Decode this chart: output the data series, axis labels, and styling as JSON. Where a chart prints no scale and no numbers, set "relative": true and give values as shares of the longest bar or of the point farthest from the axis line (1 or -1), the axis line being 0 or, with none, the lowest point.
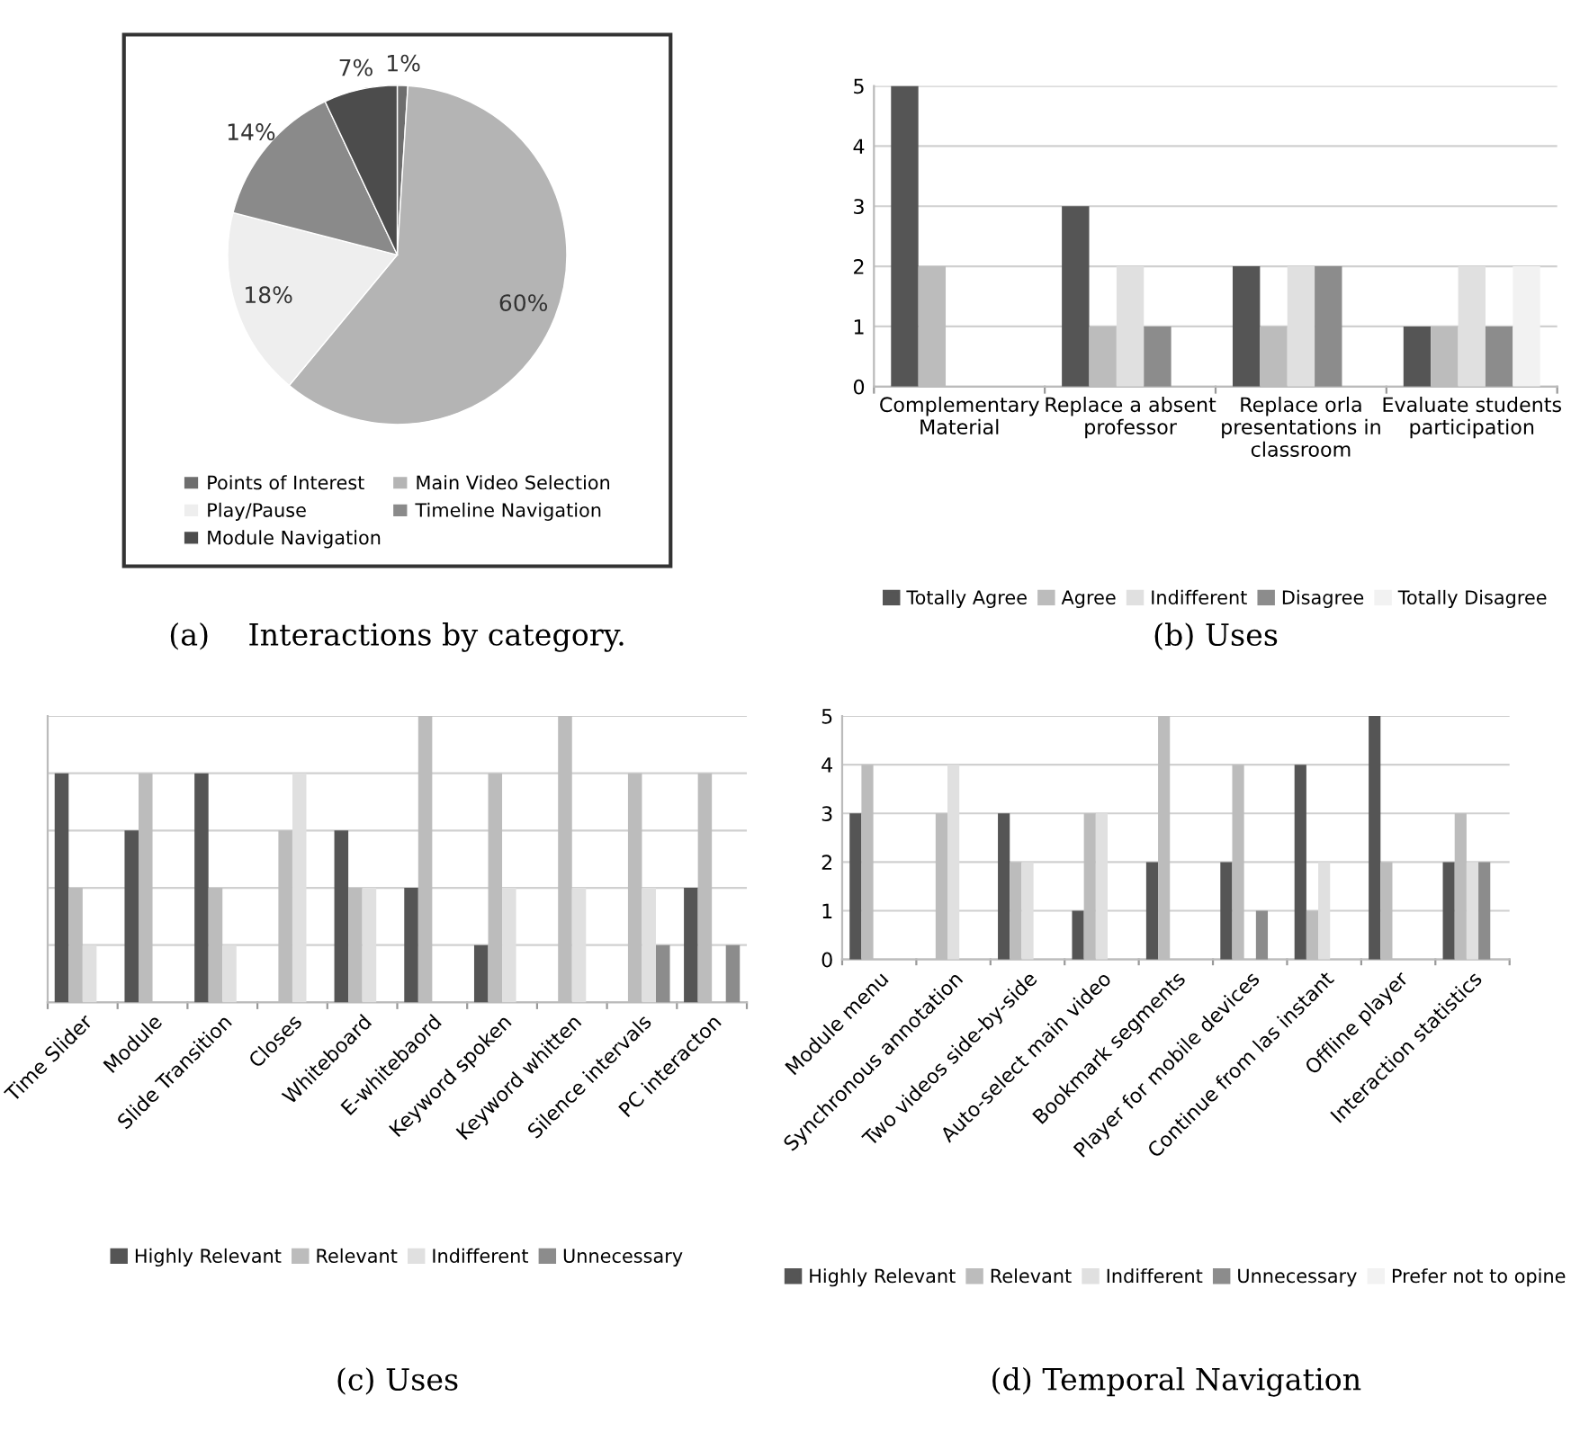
{
  "chart_data": [
    {
      "type": "pie",
      "title": "(a)    Interactions by category.",
      "categories": [
        "Points of Interest",
        "Main Video Selection",
        "Play/Pause",
        "Timeline Navigation",
        "Module Navigation"
      ],
      "values": [
        1,
        60,
        18,
        14,
        7
      ],
      "colors": [
        "#6e6e6e",
        "#b4b4b4",
        "#eeeeee",
        "#8a8a8a",
        "#4c4c4c"
      ],
      "value_labels": [
        "1%",
        "60%",
        "18%",
        "14%",
        "7%"
      ],
      "legend": "bottom"
    },
    {
      "type": "bar",
      "title": "(b) Uses",
      "categories": [
        "Complementary\nMaterial",
        "Replace a absent\nprofessor",
        "Replace orla\npresentations in\nclassroom",
        "Evaluate students\nparticipation"
      ],
      "ylim": [
        0,
        5
      ],
      "yticks": [
        0,
        1,
        2,
        3,
        4,
        5
      ],
      "grid": "y",
      "legend": "bottom",
      "series": [
        {
          "name": "Totally Agree",
          "color": "#555555",
          "values": [
            5,
            3,
            2,
            1
          ]
        },
        {
          "name": "Agree",
          "color": "#bcbcbc",
          "values": [
            2,
            1,
            1,
            1
          ]
        },
        {
          "name": "Indifferent",
          "color": "#e0e0e0",
          "values": [
            null,
            2,
            2,
            2
          ]
        },
        {
          "name": "Disagree",
          "color": "#8c8c8c",
          "values": [
            null,
            1,
            2,
            1
          ]
        },
        {
          "name": "Totally Disagree",
          "color": "#f2f2f2",
          "values": [
            null,
            null,
            null,
            2
          ]
        }
      ]
    },
    {
      "type": "bar",
      "title": "(c) Uses",
      "relative": true,
      "categories": [
        "Time Slider",
        "Module",
        "Slide Transition",
        "Closes",
        "Whiteboard",
        "E-whitebaord",
        "Keyword spoken",
        "Keyword whitten",
        "Silence intervals",
        "PC interacton"
      ],
      "grid": "y",
      "legend": "bottom",
      "tick_labels": "x",
      "series": [
        {
          "name": "Highly Relevant",
          "color": "#555555",
          "values": [
            0.8,
            0.6,
            0.8,
            null,
            0.6,
            0.4,
            0.2,
            null,
            null,
            0.4
          ]
        },
        {
          "name": "Relevant",
          "color": "#bcbcbc",
          "values": [
            0.4,
            0.8,
            0.4,
            0.6,
            0.4,
            1,
            0.8,
            1,
            0.8,
            0.8
          ]
        },
        {
          "name": "Indifferent",
          "color": "#e0e0e0",
          "values": [
            0.2,
            null,
            0.2,
            0.8,
            0.4,
            null,
            0.4,
            0.4,
            0.4,
            null
          ]
        },
        {
          "name": "Unnecessary",
          "color": "#8c8c8c",
          "values": [
            null,
            null,
            null,
            null,
            null,
            null,
            null,
            null,
            0.2,
            0.2
          ]
        }
      ]
    },
    {
      "type": "bar",
      "title": "(d) Temporal Navigation",
      "categories": [
        "Module menu",
        "Synchronous annotation",
        "Two videos side-by-side",
        "Auto-select main video",
        "Bookmark segments",
        "Player for mobile devices",
        "Continue from las instant",
        "Offline player",
        "Interaction statistics"
      ],
      "ylim": [
        0,
        5
      ],
      "yticks": [
        0,
        1,
        2,
        3,
        4,
        5
      ],
      "grid": "y",
      "legend": "bottom",
      "series": [
        {
          "name": "Highly Relevant",
          "color": "#555555",
          "values": [
            3,
            null,
            3,
            1,
            2,
            2,
            4,
            5,
            2
          ]
        },
        {
          "name": "Relevant",
          "color": "#bcbcbc",
          "values": [
            4,
            3,
            2,
            3,
            5,
            4,
            1,
            2,
            3
          ]
        },
        {
          "name": "Indifferent",
          "color": "#e0e0e0",
          "values": [
            null,
            4,
            2,
            3,
            null,
            null,
            2,
            null,
            2
          ]
        },
        {
          "name": "Unnecessary",
          "color": "#8c8c8c",
          "values": [
            null,
            null,
            null,
            null,
            null,
            1,
            null,
            null,
            2
          ]
        },
        {
          "name": "Prefer not to opine",
          "color": "#f2f2f2",
          "values": [
            null,
            null,
            null,
            null,
            null,
            null,
            null,
            null,
            null
          ]
        }
      ]
    }
  ]
}
